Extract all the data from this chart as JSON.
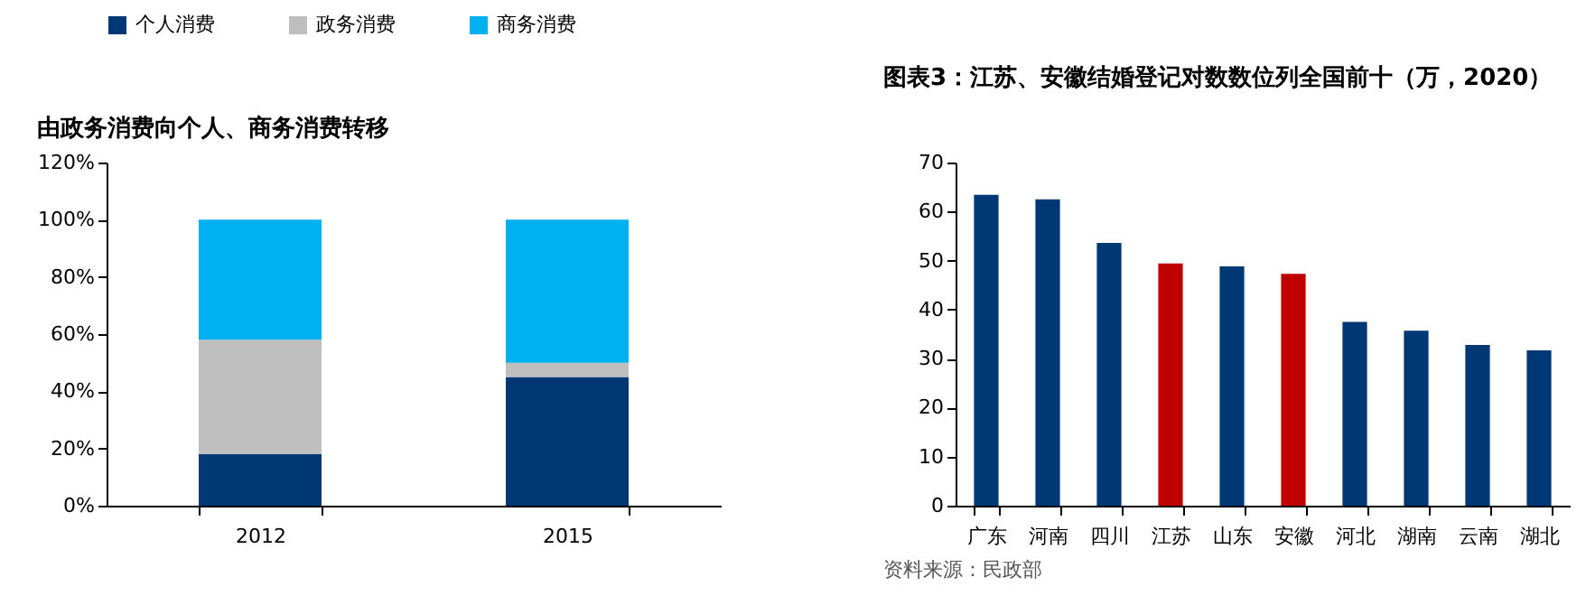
{
  "chart_data": [
    {
      "type": "bar",
      "title": "由政务消费向个人、商务消费转移",
      "stacked": true,
      "categories": [
        "2012",
        "2015"
      ],
      "series": [
        {
          "name": "个人消费",
          "color": "#003775",
          "values": [
            18,
            45
          ]
        },
        {
          "name": "政务消费",
          "color": "#bfbfbf",
          "values": [
            40,
            5
          ]
        },
        {
          "name": "商务消费",
          "color": "#00b0f0",
          "values": [
            42,
            50
          ]
        }
      ],
      "ylim": [
        0,
        120
      ],
      "yticks": [
        {
          "value": 0,
          "label": "0%"
        },
        {
          "value": 20,
          "label": "20%"
        },
        {
          "value": 40,
          "label": "40%"
        },
        {
          "value": 60,
          "label": "60%"
        },
        {
          "value": 80,
          "label": "80%"
        },
        {
          "value": 100,
          "label": "100%"
        },
        {
          "value": 120,
          "label": "120%"
        }
      ],
      "grid": false,
      "legend": "top"
    },
    {
      "type": "bar",
      "title": "图表3：江苏、安徽结婚登记对数数位列全国前十（万，2020）",
      "categories": [
        "广东",
        "河南",
        "四川",
        "江苏",
        "山东",
        "安徽",
        "河北",
        "湖南",
        "云南",
        "湖北"
      ],
      "values": [
        63.4,
        62.5,
        53.6,
        49.4,
        48.8,
        47.3,
        37.5,
        35.7,
        32.8,
        31.7
      ],
      "colors": [
        "#003775",
        "#003775",
        "#003775",
        "#c00000",
        "#003775",
        "#c00000",
        "#003775",
        "#003775",
        "#003775",
        "#003775"
      ],
      "ylim": [
        0,
        70
      ],
      "yticks": [
        0,
        10,
        20,
        30,
        40,
        50,
        60,
        70
      ],
      "grid": false,
      "annotations": [
        "资料来源：民政部"
      ]
    }
  ]
}
